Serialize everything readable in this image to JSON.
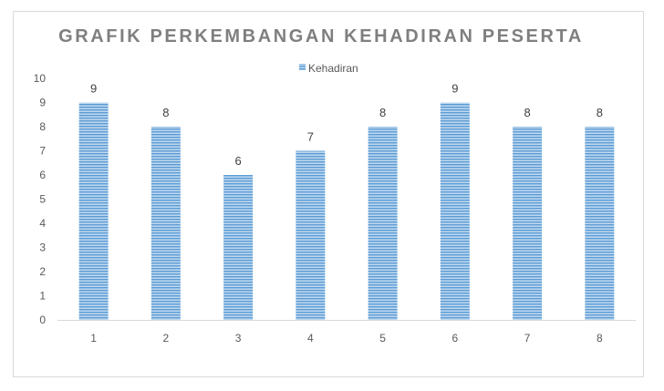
{
  "chart_data": {
    "type": "bar",
    "title": "GRAFIK PERKEMBANGAN KEHADIRAN PESERTA",
    "categories": [
      "1",
      "2",
      "3",
      "4",
      "5",
      "6",
      "7",
      "8"
    ],
    "series": [
      {
        "name": "Kehadiran",
        "values": [
          9,
          8,
          6,
          7,
          8,
          9,
          8,
          8
        ]
      }
    ],
    "xlabel": "",
    "ylabel": "",
    "ylim": [
      0,
      10
    ],
    "yticks": [
      0,
      1,
      2,
      3,
      4,
      5,
      6,
      7,
      8,
      9,
      10
    ],
    "grid": false,
    "legend_position": "top",
    "data_labels": true,
    "colors": {
      "bar": "#9dc3e6",
      "bar_stripe": "#5b9bd5",
      "axis": "#d9d9d9",
      "text": "#595959",
      "title": "#7f7f7f"
    }
  }
}
